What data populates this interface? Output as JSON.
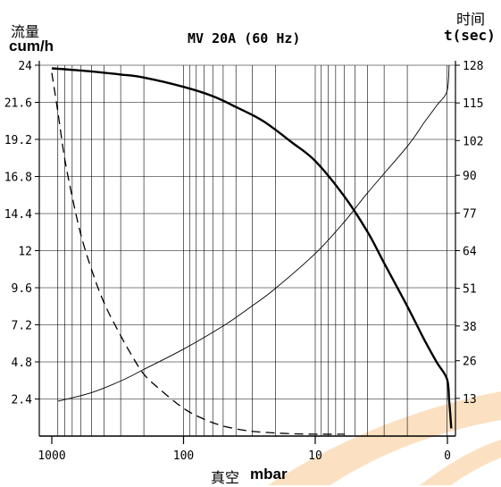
{
  "chart_data": {
    "type": "line",
    "title": "MV 20A (60 Hz)",
    "y_left_label_cn": "流量",
    "y_left_label_unit": "cum/h",
    "y_right_label_cn": "时间",
    "y_right_label_unit": "t(sec)",
    "x_label_cn": "真空",
    "x_label_unit": "mbar",
    "x_scale": "log",
    "x_direction": "decreasing",
    "x_ticks": [
      "1000",
      "100",
      "10",
      "0"
    ],
    "x_range": [
      1000,
      0.5
    ],
    "y_left_ticks": [
      "24",
      "21.6",
      "19.2",
      "16.8",
      "14.4",
      "12",
      "9.6",
      "7.2",
      "4.8",
      "2.4"
    ],
    "y_left_range": [
      0,
      24
    ],
    "y_right_ticks": [
      "128",
      "115",
      "102",
      "90",
      "77",
      "64",
      "51",
      "38",
      "26",
      "13"
    ],
    "y_right_range": [
      0,
      128
    ],
    "grid": true,
    "series": [
      {
        "axis": "left",
        "style": "solid-thick",
        "x": [
          1000,
          700,
          500,
          300,
          200,
          100,
          60,
          40,
          25,
          15,
          10,
          6,
          4,
          3,
          2,
          1.5,
          1.2,
          1,
          0.8,
          0.7,
          0.6
        ],
        "y": [
          23.8,
          23.7,
          23.6,
          23.4,
          23.2,
          22.6,
          22.0,
          21.3,
          20.4,
          19.0,
          17.8,
          15.5,
          13.2,
          11.2,
          8.4,
          6.3,
          4.8,
          3.7,
          2.3,
          1.5,
          0.5
        ]
      },
      {
        "axis": "left",
        "style": "dashed",
        "x": [
          1000,
          900,
          800,
          700,
          600,
          500,
          400,
          300,
          250,
          200,
          150,
          100,
          70,
          50,
          35,
          25,
          15,
          10,
          6
        ],
        "y": [
          23.5,
          21.0,
          18.0,
          15.5,
          13.0,
          10.8,
          8.6,
          6.5,
          5.3,
          4.0,
          3.0,
          1.8,
          1.1,
          0.65,
          0.38,
          0.25,
          0.15,
          0.12,
          0.12
        ]
      },
      {
        "axis": "right",
        "style": "solid-thin",
        "x": [
          900,
          500,
          300,
          200,
          100,
          50,
          30,
          20,
          10,
          6,
          4,
          2,
          1.5,
          1.2,
          1,
          0.8
        ],
        "y": [
          12,
          15,
          19,
          23,
          30,
          38,
          45,
          51,
          63,
          74,
          84,
          100,
          108,
          114,
          119,
          128
        ]
      }
    ]
  },
  "colors": {
    "ink": "#000000",
    "watermark": "#f8c98f"
  }
}
